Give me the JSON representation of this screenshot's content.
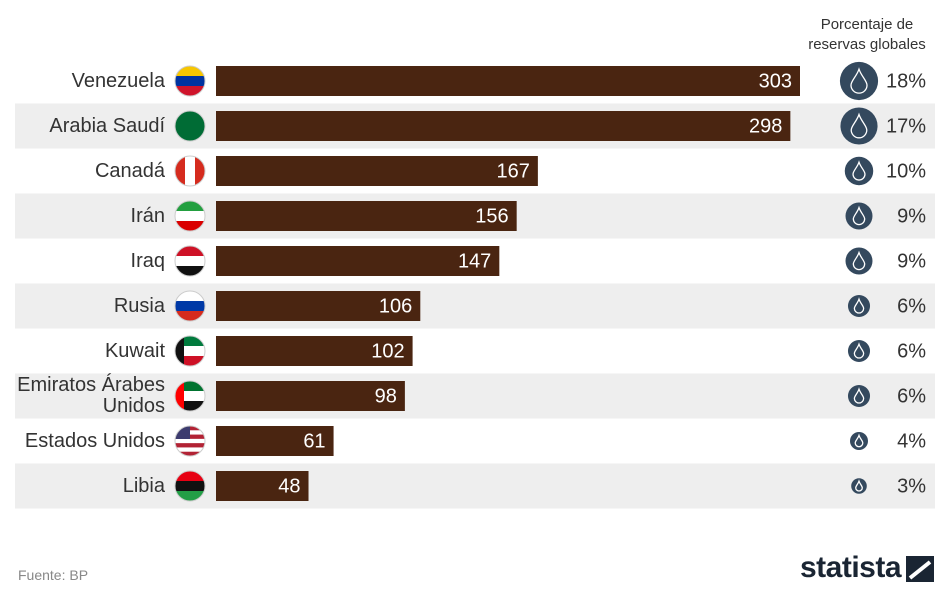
{
  "chart_data": {
    "type": "bar",
    "orientation": "horizontal",
    "categories": [
      "Venezuela",
      "Arabia Saudí",
      "Canadá",
      "Irán",
      "Iraq",
      "Rusia",
      "Kuwait",
      "Emiratos Árabes Unidos",
      "Estados Unidos",
      "Libia"
    ],
    "values": [
      303,
      298,
      167,
      156,
      147,
      106,
      102,
      98,
      61,
      48
    ],
    "color": "#4a2511",
    "share_title": "Porcentaje de reservas globales",
    "share": {
      "values": [
        18,
        17,
        10,
        9,
        9,
        6,
        6,
        6,
        4,
        3
      ],
      "value_labels": [
        "18%",
        "17%",
        "10%",
        "9%",
        "9%",
        "6%",
        "6%",
        "6%",
        "4%",
        "3%"
      ],
      "color": "#34495e"
    }
  },
  "source": "Fuente: BP",
  "brand": "statista"
}
